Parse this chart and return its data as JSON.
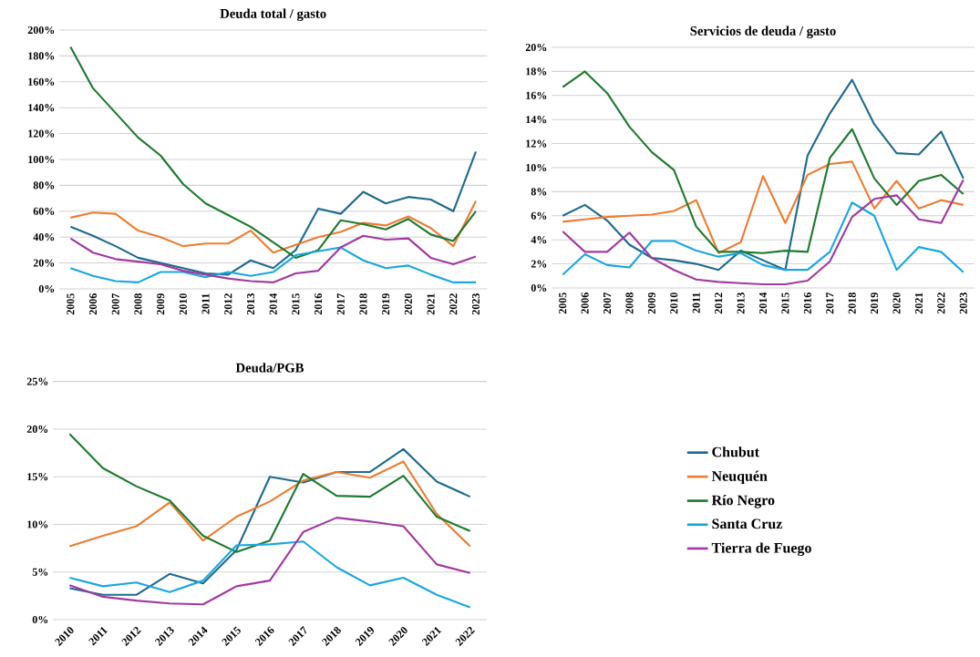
{
  "chart_data": [
    {
      "type": "line",
      "title": "Deuda total / gasto",
      "categories": [
        "2005",
        "2006",
        "2007",
        "2008",
        "2009",
        "2010",
        "2011",
        "2012",
        "2013",
        "2014",
        "2015",
        "2016",
        "2017",
        "2018",
        "2019",
        "2020",
        "2021",
        "2022",
        "2023"
      ],
      "ylim": [
        0,
        200
      ],
      "yticks": [
        {
          "value": 0,
          "label": "0%"
        },
        {
          "value": 20,
          "label": "20%"
        },
        {
          "value": 40,
          "label": "40%"
        },
        {
          "value": 60,
          "label": "60%"
        },
        {
          "value": 80,
          "label": "80%"
        },
        {
          "value": 100,
          "label": "100%"
        },
        {
          "value": 120,
          "label": "120%"
        },
        {
          "value": 140,
          "label": "140%"
        },
        {
          "value": 160,
          "label": "160%"
        },
        {
          "value": 180,
          "label": "180%"
        },
        {
          "value": 200,
          "label": "200%"
        }
      ],
      "grid": "y",
      "legend": false,
      "marker": "none",
      "line_style": "solid",
      "series": [
        {
          "color": "#1f6b8e",
          "values": [
            48,
            41,
            33,
            24,
            20,
            16,
            12,
            11,
            22,
            16,
            30,
            62,
            58,
            75,
            66,
            71,
            69,
            60,
            106
          ]
        },
        {
          "color": "#ed7d31",
          "values": [
            55,
            59,
            58,
            45,
            40,
            33,
            35,
            35,
            45,
            28,
            34,
            40,
            44,
            51,
            49,
            56,
            47,
            33,
            68
          ]
        },
        {
          "color": "#1e7b2e",
          "values": [
            187,
            155,
            136,
            117,
            103,
            81,
            66,
            57,
            48,
            36,
            24,
            30,
            53,
            50,
            46,
            54,
            42,
            37,
            60
          ]
        },
        {
          "color": "#1aa7e0",
          "values": [
            16,
            10,
            6,
            5,
            13,
            13,
            9,
            13,
            10,
            13,
            26,
            29,
            32,
            22,
            16,
            18,
            11,
            5,
            5
          ]
        },
        {
          "color": "#a23aa0",
          "values": [
            39,
            28,
            23,
            21,
            19,
            14,
            11,
            8,
            6,
            5,
            12,
            14,
            32,
            41,
            38,
            39,
            24,
            19,
            25
          ]
        }
      ]
    },
    {
      "type": "line",
      "title": "Servicios de deuda / gasto",
      "categories": [
        "2005",
        "2006",
        "2007",
        "2008",
        "2009",
        "2010",
        "2011",
        "2012",
        "2013",
        "2014",
        "2015",
        "2016",
        "2017",
        "2018",
        "2019",
        "2020",
        "2021",
        "2022",
        "2023"
      ],
      "ylim": [
        0,
        20
      ],
      "yticks": [
        {
          "value": 0,
          "label": "0%"
        },
        {
          "value": 2,
          "label": "2%"
        },
        {
          "value": 4,
          "label": "4%"
        },
        {
          "value": 6,
          "label": "6%"
        },
        {
          "value": 8,
          "label": "8%"
        },
        {
          "value": 10,
          "label": "10%"
        },
        {
          "value": 12,
          "label": "12%"
        },
        {
          "value": 14,
          "label": "14%"
        },
        {
          "value": 16,
          "label": "16%"
        },
        {
          "value": 18,
          "label": "18%"
        },
        {
          "value": 20,
          "label": "20%"
        }
      ],
      "grid": "y",
      "legend": false,
      "marker": "none",
      "line_style": "solid",
      "series": [
        {
          "color": "#1f6b8e",
          "values": [
            6.0,
            6.9,
            5.6,
            3.6,
            2.5,
            2.3,
            2.0,
            1.5,
            3.1,
            2.3,
            1.5,
            11.0,
            14.5,
            17.3,
            13.6,
            11.2,
            11.1,
            13.0,
            9.1
          ]
        },
        {
          "color": "#ed7d31",
          "values": [
            5.5,
            5.7,
            5.9,
            6.0,
            6.1,
            6.4,
            7.3,
            2.9,
            3.8,
            9.3,
            5.4,
            9.4,
            10.3,
            10.5,
            6.6,
            8.9,
            6.6,
            7.3,
            6.9
          ]
        },
        {
          "color": "#1e7b2e",
          "values": [
            16.7,
            18.0,
            16.2,
            13.4,
            11.3,
            9.8,
            5.1,
            3.0,
            3.0,
            2.9,
            3.1,
            3.0,
            10.8,
            13.2,
            9.1,
            6.9,
            8.9,
            9.4,
            7.8
          ]
        },
        {
          "color": "#1aa7e0",
          "values": [
            1.1,
            2.8,
            1.9,
            1.7,
            3.9,
            3.9,
            3.1,
            2.6,
            2.9,
            1.9,
            1.5,
            1.5,
            3.0,
            7.1,
            6.0,
            1.5,
            3.4,
            3.0,
            1.3
          ]
        },
        {
          "color": "#a23aa0",
          "values": [
            4.7,
            3.0,
            3.0,
            4.6,
            2.5,
            1.5,
            0.7,
            0.5,
            0.4,
            0.3,
            0.3,
            0.6,
            2.2,
            5.9,
            7.4,
            7.7,
            5.7,
            5.4,
            9.0
          ]
        }
      ]
    },
    {
      "type": "line",
      "title": "Deuda/PGB",
      "categories": [
        "2010",
        "2011",
        "2012",
        "2013",
        "2014",
        "2015",
        "2016",
        "2017",
        "2018",
        "2019",
        "2020",
        "2021",
        "2022"
      ],
      "ylim": [
        0,
        25
      ],
      "yticks": [
        {
          "value": 0,
          "label": "0%"
        },
        {
          "value": 5,
          "label": "5%"
        },
        {
          "value": 10,
          "label": "10%"
        },
        {
          "value": 15,
          "label": "15%"
        },
        {
          "value": 20,
          "label": "20%"
        },
        {
          "value": 25,
          "label": "25%"
        }
      ],
      "grid": "y",
      "legend": "right",
      "marker": "none",
      "line_style": "solid",
      "series": [
        {
          "name": "Chubut",
          "color": "#1f6b8e",
          "values": [
            3.3,
            2.6,
            2.6,
            4.8,
            3.8,
            7.3,
            15.0,
            14.4,
            15.5,
            15.5,
            17.9,
            14.5,
            12.9
          ]
        },
        {
          "name": "Neuquén",
          "color": "#ed7d31",
          "values": [
            7.7,
            8.8,
            9.8,
            12.3,
            8.3,
            10.8,
            12.4,
            14.6,
            15.5,
            14.9,
            16.6,
            11.1,
            7.7
          ]
        },
        {
          "name": "Río Negro",
          "color": "#1e7b2e",
          "values": [
            19.5,
            15.9,
            14.0,
            12.5,
            8.8,
            7.1,
            8.3,
            15.3,
            13.0,
            12.9,
            15.1,
            10.8,
            9.3
          ]
        },
        {
          "name": "Santa Cruz",
          "color": "#1aa7e0",
          "values": [
            4.4,
            3.5,
            3.9,
            2.9,
            4.1,
            7.8,
            7.9,
            8.2,
            5.5,
            3.6,
            4.4,
            2.6,
            1.3
          ]
        },
        {
          "name": "Tierra de Fuego",
          "color": "#a23aa0",
          "values": [
            3.6,
            2.4,
            2.0,
            1.7,
            1.6,
            3.5,
            4.1,
            9.2,
            10.7,
            10.3,
            9.8,
            5.8,
            4.9
          ]
        }
      ]
    }
  ]
}
